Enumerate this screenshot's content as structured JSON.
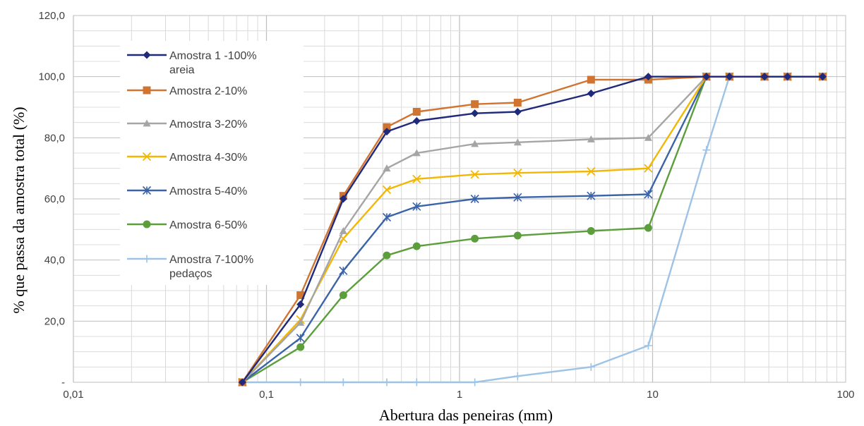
{
  "chart_data": {
    "type": "line",
    "xscale": "log",
    "xlim": [
      0.01,
      100
    ],
    "ylim": [
      0,
      120
    ],
    "grid": true,
    "legend_position": "top-left",
    "xlabel": "Abertura das peneiras (mm)",
    "ylabel": "% que passa da amostra total  (%)",
    "x_tick_labels": [
      "0,01",
      "0,1",
      "1",
      "10",
      "100"
    ],
    "y_tick_labels": [
      "-",
      "20,0",
      "40,0",
      "60,0",
      "80,0",
      "100,0",
      "120,0"
    ],
    "x": [
      0.075,
      0.15,
      0.25,
      0.42,
      0.6,
      1.2,
      2.0,
      4.8,
      9.5,
      19,
      25,
      38,
      50,
      76
    ],
    "series": [
      {
        "name": "Amostra 1 -100% areia",
        "color": "#1f2a7a",
        "marker": "diamond",
        "values": [
          0,
          25.5,
          60,
          82,
          85.5,
          88,
          88.5,
          94.5,
          100,
          100,
          100,
          100,
          100,
          100
        ]
      },
      {
        "name": "Amostra 2-10%",
        "color": "#d07432",
        "marker": "square",
        "values": [
          0,
          28.5,
          61,
          83.5,
          88.5,
          91,
          91.5,
          99,
          99,
          100,
          100,
          100,
          100,
          100
        ]
      },
      {
        "name": "Amostra 3-20%",
        "color": "#a5a5a5",
        "marker": "triangle",
        "values": [
          0,
          19.5,
          49.5,
          70,
          75,
          78,
          78.5,
          79.5,
          80,
          100,
          100,
          100,
          100,
          100
        ]
      },
      {
        "name": "Amostra 4-30%",
        "color": "#f2b705",
        "marker": "x",
        "values": [
          0,
          20.5,
          47,
          63,
          66.5,
          68,
          68.5,
          69,
          70,
          100,
          100,
          100,
          100,
          100
        ]
      },
      {
        "name": "Amostra 5-40%",
        "color": "#3a63a8",
        "marker": "asterisk",
        "values": [
          0,
          14.5,
          36.5,
          54,
          57.5,
          60,
          60.5,
          61,
          61.5,
          100,
          100,
          100,
          100,
          100
        ]
      },
      {
        "name": "Amostra 6-50%",
        "color": "#5c9e3c",
        "marker": "circle",
        "values": [
          0,
          11.5,
          28.5,
          41.5,
          44.5,
          47,
          48,
          49.5,
          50.5,
          100,
          100,
          100,
          100,
          100
        ]
      },
      {
        "name": "Amostra 7-100% pedaços",
        "color": "#9dc3e6",
        "marker": "plus",
        "values": [
          0,
          0,
          0,
          0,
          0,
          0,
          2,
          5,
          12,
          76,
          100,
          100,
          100,
          100
        ]
      }
    ]
  }
}
